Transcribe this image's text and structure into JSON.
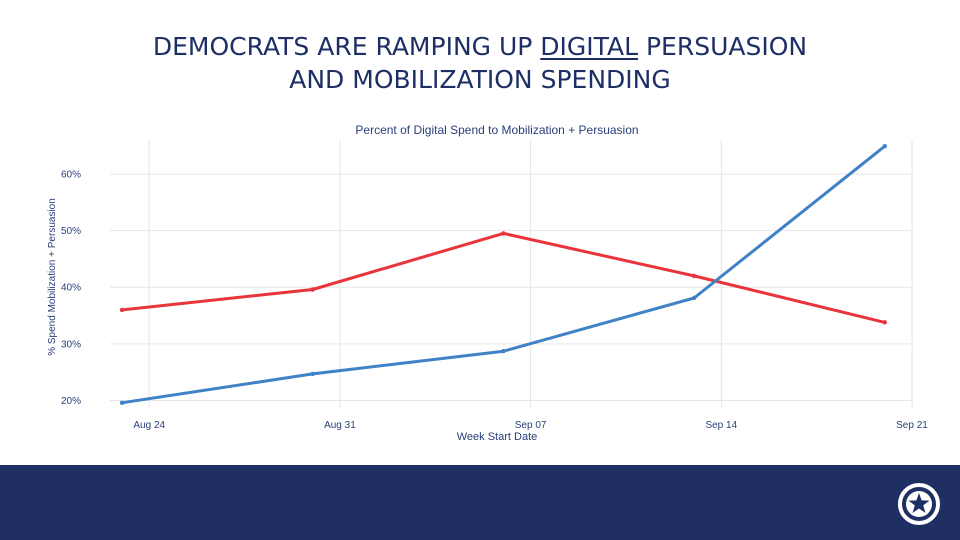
{
  "slide": {
    "headline_line1_a": "DEMOCRATS ARE RAMPING UP ",
    "headline_line1_b": "DIGITAL",
    "headline_line1_c": " PERSUASION",
    "headline_line2": "AND MOBILIZATION SPENDING",
    "footer_color": "#1f2f63",
    "logo_icon": "star-in-circle-icon"
  },
  "chart_data": {
    "type": "line",
    "title": "Percent of Digital Spend to Mobilization + Persuasion",
    "xlabel": "Week Start Date",
    "ylabel": "% Spend Mobilization + Persuasion",
    "x_tick_labels": [
      "Aug 24",
      "Aug 31",
      "Sep 07",
      "Sep 14",
      "Sep 21"
    ],
    "y_tick_labels": [
      "20%",
      "30%",
      "40%",
      "50%",
      "60%"
    ],
    "y_ticks": [
      20,
      30,
      40,
      50,
      60
    ],
    "x_ticks": [
      "2020-08-24",
      "2020-08-31",
      "2020-09-07",
      "2020-09-14",
      "2020-09-21"
    ],
    "x_range": [
      "2020-08-23",
      "2020-09-21"
    ],
    "ylim": [
      18.5,
      66
    ],
    "grid": true,
    "legend": "none",
    "series": [
      {
        "color": "#e8343a",
        "x": [
          "2020-08-23",
          "2020-08-30",
          "2020-09-06",
          "2020-09-13",
          "2020-09-20"
        ],
        "values": [
          36.0,
          39.6,
          49.5,
          42.0,
          33.8
        ]
      },
      {
        "color": "#3f82c6",
        "x": [
          "2020-08-23",
          "2020-08-30",
          "2020-09-06",
          "2020-09-13",
          "2020-09-20"
        ],
        "values": [
          19.6,
          24.7,
          28.7,
          38.1,
          64.9
        ]
      }
    ]
  }
}
